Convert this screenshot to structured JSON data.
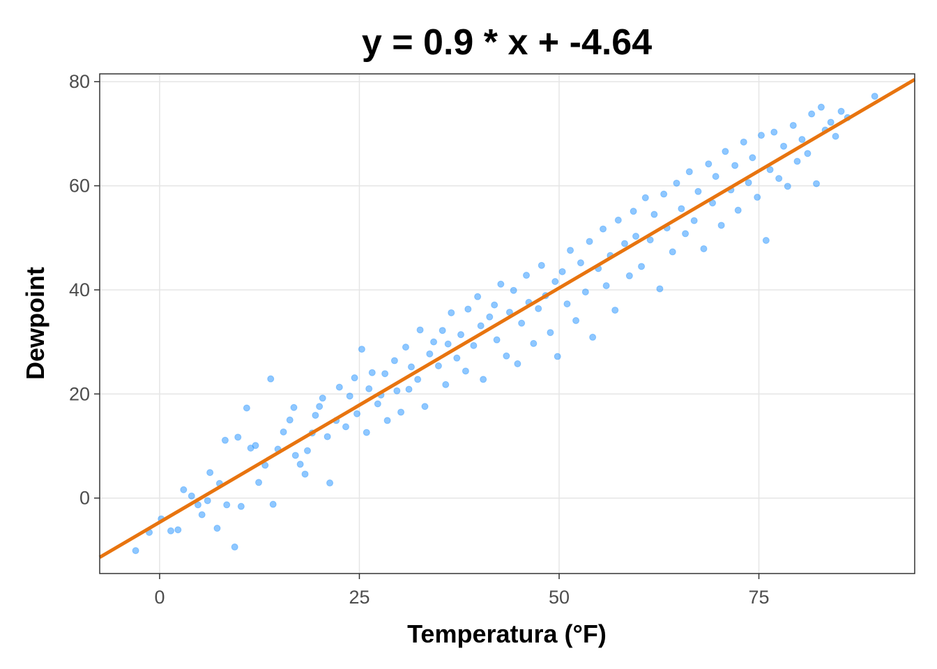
{
  "chart_data": {
    "type": "scatter",
    "title": "y = 0.9 * x + -4.64",
    "xlabel": "Temperatura (°F)",
    "ylabel": "Dewpoint",
    "xlim": [
      -7.5,
      94.5
    ],
    "ylim": [
      -14.5,
      81.5
    ],
    "x_ticks": [
      0,
      25,
      50,
      75
    ],
    "y_ticks": [
      0,
      20,
      40,
      60,
      80
    ],
    "x_tick_labels": [
      "0",
      "25",
      "50",
      "75"
    ],
    "y_tick_labels": [
      "0",
      "20",
      "40",
      "60",
      "80"
    ],
    "grid": true,
    "legend": "none",
    "regression": {
      "slope": 0.9,
      "intercept": -4.64,
      "color": "#e8740f"
    },
    "point_color": "#1e90ff",
    "series": [
      {
        "points": [
          [
            -3,
            -10.1
          ],
          [
            -1.3,
            -6.6
          ],
          [
            0.2,
            -4
          ],
          [
            1.4,
            -6.3
          ],
          [
            2.3,
            -6.1
          ],
          [
            3,
            1.6
          ],
          [
            4,
            0.4
          ],
          [
            4.8,
            -1.3
          ],
          [
            5.3,
            -3.2
          ],
          [
            6,
            -0.5
          ],
          [
            6.3,
            4.9
          ],
          [
            7.2,
            -5.8
          ],
          [
            7.5,
            2.8
          ],
          [
            8.2,
            11.1
          ],
          [
            8.4,
            -1.3
          ],
          [
            9.4,
            -9.4
          ],
          [
            9.8,
            11.7
          ],
          [
            10.2,
            -1.6
          ],
          [
            10.9,
            17.3
          ],
          [
            11.4,
            9.6
          ],
          [
            12,
            10.1
          ],
          [
            12.4,
            3
          ],
          [
            13.2,
            6.3
          ],
          [
            13.9,
            22.9
          ],
          [
            14.2,
            -1.2
          ],
          [
            14.8,
            9.4
          ],
          [
            15.5,
            12.7
          ],
          [
            16.3,
            15
          ],
          [
            16.8,
            17.4
          ],
          [
            17,
            8.2
          ],
          [
            17.6,
            6.5
          ],
          [
            18.2,
            4.6
          ],
          [
            18.5,
            9.1
          ],
          [
            19.1,
            12.5
          ],
          [
            19.5,
            15.9
          ],
          [
            20,
            17.6
          ],
          [
            20.4,
            19.2
          ],
          [
            21,
            11.8
          ],
          [
            21.3,
            2.9
          ],
          [
            22.1,
            14.9
          ],
          [
            22.5,
            21.3
          ],
          [
            23.3,
            13.7
          ],
          [
            23.8,
            19.6
          ],
          [
            24.4,
            23.1
          ],
          [
            24.7,
            16.2
          ],
          [
            25.3,
            28.6
          ],
          [
            25.9,
            12.6
          ],
          [
            26.2,
            21
          ],
          [
            26.6,
            24.1
          ],
          [
            27.3,
            18.1
          ],
          [
            27.7,
            19.8
          ],
          [
            28.2,
            23.9
          ],
          [
            28.5,
            14.9
          ],
          [
            29.4,
            26.4
          ],
          [
            29.7,
            20.6
          ],
          [
            30.2,
            16.5
          ],
          [
            30.8,
            29
          ],
          [
            31.2,
            20.9
          ],
          [
            31.5,
            25.2
          ],
          [
            32.3,
            22.8
          ],
          [
            32.6,
            32.3
          ],
          [
            33.2,
            17.6
          ],
          [
            33.8,
            27.7
          ],
          [
            34.3,
            30
          ],
          [
            34.9,
            25.4
          ],
          [
            35.4,
            32.2
          ],
          [
            35.8,
            21.8
          ],
          [
            36.1,
            29.6
          ],
          [
            36.5,
            35.6
          ],
          [
            37.2,
            26.9
          ],
          [
            37.7,
            31.4
          ],
          [
            38.3,
            24.4
          ],
          [
            38.6,
            36.3
          ],
          [
            39.3,
            29.3
          ],
          [
            39.8,
            38.7
          ],
          [
            40.2,
            33.1
          ],
          [
            40.5,
            22.8
          ],
          [
            41.3,
            34.8
          ],
          [
            41.9,
            37.1
          ],
          [
            42.2,
            30.4
          ],
          [
            42.7,
            41.1
          ],
          [
            43.4,
            27.3
          ],
          [
            43.8,
            35.7
          ],
          [
            44.3,
            39.9
          ],
          [
            44.8,
            25.8
          ],
          [
            45.3,
            33.6
          ],
          [
            45.9,
            42.8
          ],
          [
            46.2,
            37.6
          ],
          [
            46.8,
            29.7
          ],
          [
            47.4,
            36.4
          ],
          [
            47.8,
            44.7
          ],
          [
            48.3,
            38.9
          ],
          [
            48.9,
            31.8
          ],
          [
            49.5,
            41.6
          ],
          [
            49.8,
            27.2
          ],
          [
            50.4,
            43.5
          ],
          [
            51,
            37.3
          ],
          [
            51.4,
            47.6
          ],
          [
            52.1,
            34.1
          ],
          [
            52.7,
            45.2
          ],
          [
            53.3,
            39.6
          ],
          [
            53.8,
            49.3
          ],
          [
            54.2,
            30.9
          ],
          [
            54.9,
            44.1
          ],
          [
            55.5,
            51.7
          ],
          [
            55.9,
            40.8
          ],
          [
            56.4,
            46.6
          ],
          [
            57,
            36.1
          ],
          [
            57.4,
            53.4
          ],
          [
            58.2,
            48.9
          ],
          [
            58.8,
            42.7
          ],
          [
            59.3,
            55.1
          ],
          [
            59.6,
            50.3
          ],
          [
            60.3,
            44.5
          ],
          [
            60.8,
            57.7
          ],
          [
            61.4,
            49.6
          ],
          [
            61.9,
            54.5
          ],
          [
            62.6,
            40.2
          ],
          [
            63.1,
            58.4
          ],
          [
            63.5,
            51.9
          ],
          [
            64.2,
            47.3
          ],
          [
            64.7,
            60.5
          ],
          [
            65.3,
            55.6
          ],
          [
            65.8,
            50.8
          ],
          [
            66.3,
            62.7
          ],
          [
            66.9,
            53.3
          ],
          [
            67.4,
            58.9
          ],
          [
            68.1,
            47.9
          ],
          [
            68.7,
            64.2
          ],
          [
            69.2,
            56.7
          ],
          [
            69.6,
            61.8
          ],
          [
            70.3,
            52.4
          ],
          [
            70.8,
            66.6
          ],
          [
            71.5,
            59.2
          ],
          [
            72,
            63.9
          ],
          [
            72.4,
            55.3
          ],
          [
            73.1,
            68.4
          ],
          [
            73.7,
            60.6
          ],
          [
            74.2,
            65.4
          ],
          [
            74.8,
            57.8
          ],
          [
            75.3,
            69.7
          ],
          [
            75.9,
            49.5
          ],
          [
            76.4,
            63.1
          ],
          [
            76.9,
            70.3
          ],
          [
            77.5,
            61.4
          ],
          [
            78.1,
            67.6
          ],
          [
            78.6,
            59.9
          ],
          [
            79.3,
            71.6
          ],
          [
            79.8,
            64.7
          ],
          [
            80.4,
            68.9
          ],
          [
            81.1,
            66.2
          ],
          [
            81.6,
            73.8
          ],
          [
            82.2,
            60.4
          ],
          [
            82.8,
            75.1
          ],
          [
            83.3,
            70.7
          ],
          [
            84,
            72.2
          ],
          [
            84.6,
            69.5
          ],
          [
            85.3,
            74.3
          ],
          [
            86.1,
            73.1
          ],
          [
            89.5,
            77.2
          ]
        ]
      }
    ]
  }
}
